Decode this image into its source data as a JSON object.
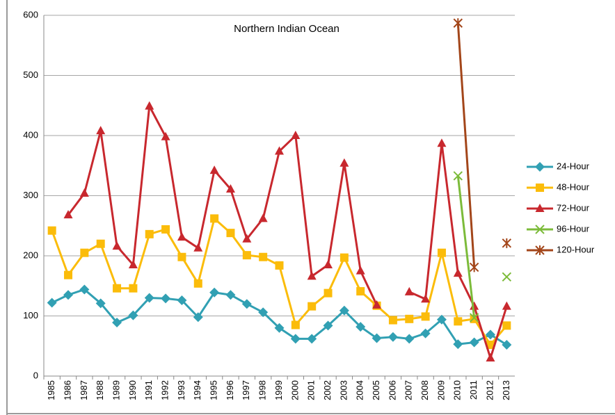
{
  "chart_data": {
    "type": "line",
    "title": "Northern Indian Ocean",
    "categories": [
      "1985",
      "1986",
      "1987",
      "1988",
      "1989",
      "1990",
      "1991",
      "1992",
      "1993",
      "1994",
      "1995",
      "1996",
      "1997",
      "1998",
      "1999",
      "2000",
      "2001",
      "2002",
      "2003",
      "2004",
      "2005",
      "2006",
      "2007",
      "2008",
      "2009",
      "2010",
      "2011",
      "2012",
      "2013"
    ],
    "series": [
      {
        "name": "24-Hour",
        "color": "#31a0b3",
        "marker": "diamond",
        "values": [
          122,
          135,
          144,
          121,
          89,
          101,
          130,
          129,
          126,
          98,
          139,
          135,
          120,
          106,
          80,
          62,
          62,
          84,
          109,
          82,
          63,
          65,
          62,
          71,
          94,
          53,
          56,
          69,
          52
        ]
      },
      {
        "name": "48-Hour",
        "color": "#fbbc0a",
        "marker": "square",
        "values": [
          242,
          168,
          205,
          220,
          146,
          146,
          236,
          244,
          198,
          154,
          262,
          238,
          201,
          198,
          184,
          85,
          116,
          138,
          197,
          141,
          117,
          93,
          95,
          99,
          205,
          91,
          95,
          52,
          84
        ]
      },
      {
        "name": "72-Hour",
        "color": "#c8282e",
        "marker": "triangle",
        "values": [
          null,
          268,
          304,
          408,
          216,
          185,
          449,
          398,
          231,
          213,
          342,
          311,
          228,
          262,
          374,
          400,
          166,
          185,
          354,
          175,
          118,
          null,
          140,
          128,
          387,
          171,
          116,
          30,
          116
        ]
      },
      {
        "name": "96-Hour",
        "color": "#7cbb3a",
        "marker": "x",
        "values": [
          null,
          null,
          null,
          null,
          null,
          null,
          null,
          null,
          null,
          null,
          null,
          null,
          null,
          null,
          null,
          null,
          null,
          null,
          null,
          null,
          null,
          null,
          null,
          null,
          null,
          333,
          97,
          null,
          165
        ]
      },
      {
        "name": "120-Hour",
        "color": "#a3461a",
        "marker": "star",
        "values": [
          null,
          null,
          null,
          null,
          null,
          null,
          null,
          null,
          null,
          null,
          null,
          null,
          null,
          null,
          null,
          null,
          null,
          null,
          null,
          null,
          null,
          null,
          null,
          null,
          null,
          587,
          181,
          null,
          221
        ]
      }
    ],
    "ylim": [
      0,
      600
    ],
    "yticks": [
      0,
      100,
      200,
      300,
      400,
      500,
      600
    ],
    "grid": true,
    "legend": "right"
  }
}
